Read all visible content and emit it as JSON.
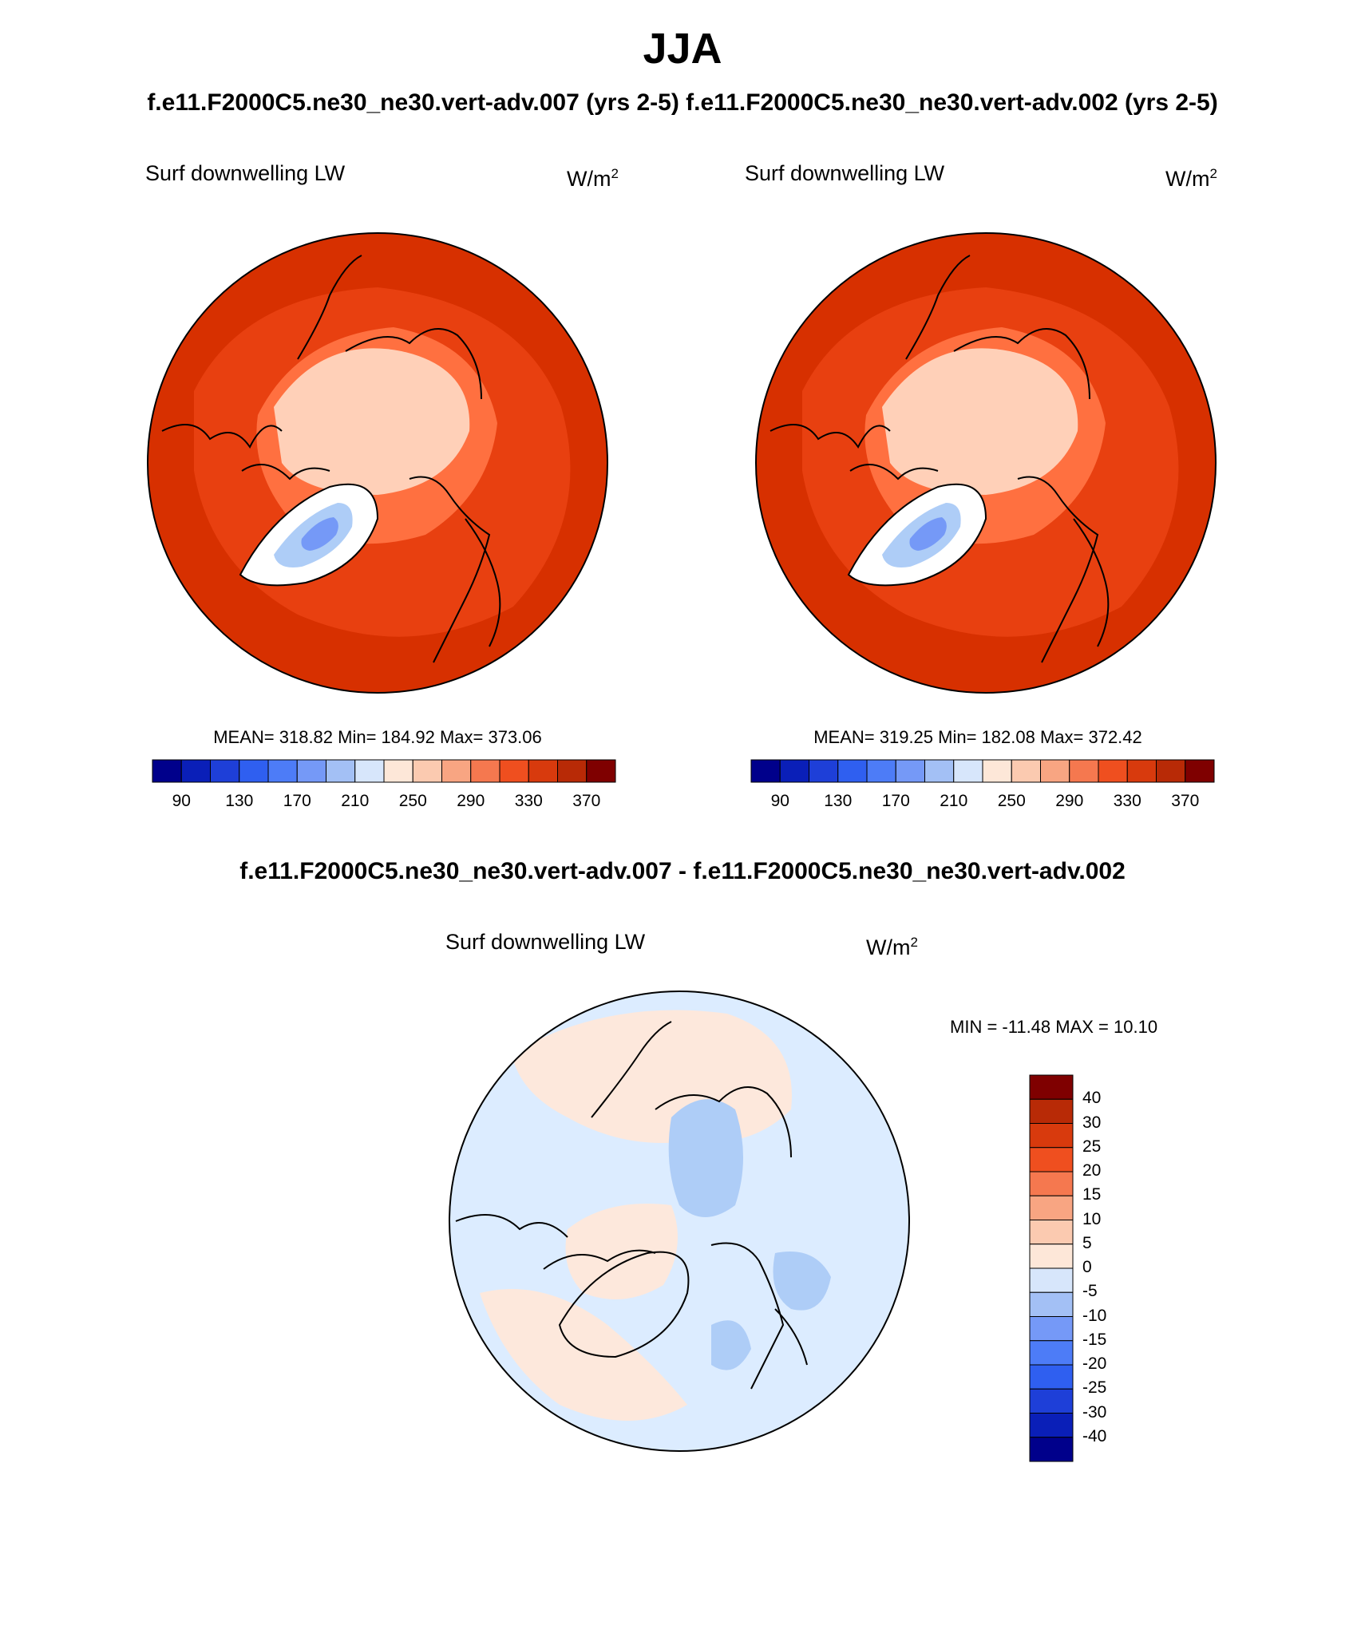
{
  "title": "JJA",
  "subtitle": "f.e11.F2000C5.ne30_ne30.vert-adv.007 (yrs 2-5)  f.e11.F2000C5.ne30_ne30.vert-adv.002 (yrs 2-5)",
  "colors": {
    "panel_fill": [
      "#ffd0b8",
      "#ff7040",
      "#e84010",
      "#d73000"
    ],
    "diff_fill": [
      "#fde8dc",
      "#dcecff",
      "#aecdf7"
    ]
  },
  "panels": [
    {
      "label": "Surf downwelling LW",
      "units": "W/m",
      "units_sup": "2",
      "stats": "MEAN= 318.82  Min= 184.92  Max= 373.06"
    },
    {
      "label": "Surf downwelling LW",
      "units": "W/m",
      "units_sup": "2",
      "stats": "MEAN= 319.25  Min= 182.08  Max= 372.42"
    }
  ],
  "colorbar": {
    "colors": [
      "#00008b",
      "#0a1fb8",
      "#1e3fd8",
      "#2f5ff0",
      "#4d7cf7",
      "#7599f7",
      "#a3c0f5",
      "#d7e6fb",
      "#fde7d8",
      "#fbcab0",
      "#f8a582",
      "#f5784f",
      "#ef4f1f",
      "#d83a0d",
      "#b82a06",
      "#7f0000"
    ],
    "ticks": [
      "90",
      "130",
      "170",
      "210",
      "250",
      "290",
      "330",
      "370"
    ]
  },
  "difference": {
    "title": "f.e11.F2000C5.ne30_ne30.vert-adv.007 - f.e11.F2000C5.ne30_ne30.vert-adv.002",
    "label": "Surf downwelling LW",
    "units": "W/m",
    "units_sup": "2",
    "stats": "MIN = -11.48 MAX =  10.10",
    "colorbar": {
      "colors": [
        "#7f0000",
        "#b82a06",
        "#d83a0d",
        "#ef4f1f",
        "#f5784f",
        "#f8a582",
        "#fbcab0",
        "#fde7d8",
        "#d7e6fb",
        "#a3c0f5",
        "#7599f7",
        "#4d7cf7",
        "#2f5ff0",
        "#1e3fd8",
        "#0a1fb8",
        "#00008b"
      ],
      "ticks": [
        "40",
        "30",
        "25",
        "20",
        "15",
        "10",
        "5",
        "0",
        "-5",
        "-10",
        "-15",
        "-20",
        "-25",
        "-30",
        "-40"
      ]
    }
  }
}
